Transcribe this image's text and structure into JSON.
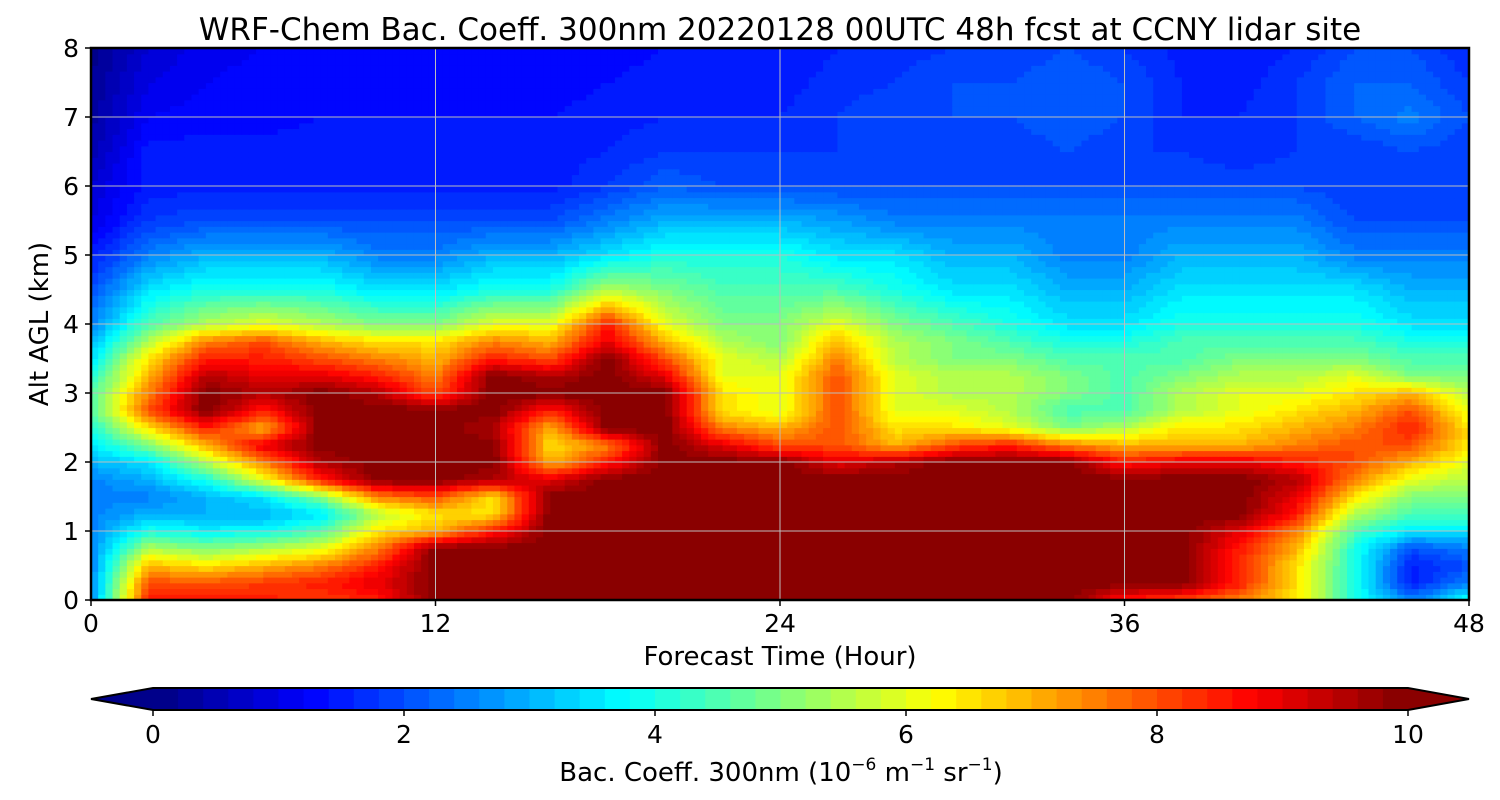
{
  "chart_data": {
    "type": "heatmap",
    "title": "WRF-Chem Bac. Coeff. 300nm  20220128 00UTC 48h fcst at CCNY lidar site",
    "xlabel": "Forecast Time (Hour)",
    "ylabel": "Alt AGL (km)",
    "xlim": [
      0,
      48
    ],
    "ylim": [
      0,
      8
    ],
    "xticks": [
      0,
      12,
      24,
      36,
      48
    ],
    "yticks": [
      0,
      1,
      2,
      3,
      4,
      5,
      6,
      7,
      8
    ],
    "grid": true,
    "colormap": "jet",
    "colorbar": {
      "label_main": "Bac. Coeff. 300nm  (10",
      "label_exp1": "−6",
      "label_mid": " m",
      "label_exp2": "−1",
      "label_mid2": " sr",
      "label_exp3": "−1",
      "label_end": ")",
      "range": [
        0,
        10
      ],
      "ticks": [
        0,
        2,
        4,
        6,
        8,
        10
      ],
      "extend": "both",
      "levels": 50
    },
    "x": [
      0,
      2,
      4,
      6,
      8,
      10,
      12,
      14,
      16,
      18,
      20,
      22,
      24,
      26,
      28,
      30,
      32,
      34,
      36,
      38,
      40,
      42,
      44,
      46,
      48
    ],
    "y": [
      0,
      0.25,
      0.5,
      0.75,
      1,
      1.25,
      1.5,
      1.75,
      2,
      2.25,
      2.5,
      2.75,
      3,
      3.25,
      3.5,
      3.75,
      4,
      4.5,
      5,
      5.5,
      6,
      6.5,
      7,
      7.5,
      8
    ],
    "z": [
      [
        2.5,
        8.5,
        8.5,
        8.5,
        8.2,
        8.5,
        10,
        10,
        10,
        10,
        10,
        10,
        10,
        10,
        10,
        10,
        10,
        10,
        8.5,
        8.0,
        7.5,
        6.5,
        4.0,
        2.5,
        4.0
      ],
      [
        2.5,
        8.0,
        8.0,
        8.2,
        8.5,
        9.0,
        10,
        10,
        10,
        10,
        10,
        10,
        10,
        10,
        10,
        10,
        10,
        10,
        10,
        10,
        8.5,
        6.5,
        4.0,
        1.5,
        2.5
      ],
      [
        2.5,
        7.0,
        6.5,
        7.0,
        7.5,
        8.5,
        10,
        10,
        10,
        10,
        10,
        10,
        10,
        10,
        10,
        10,
        10,
        10,
        10,
        10,
        8.5,
        6.5,
        4.0,
        1.5,
        2.0
      ],
      [
        2.5,
        5.5,
        5.0,
        5.5,
        6.0,
        7.5,
        10,
        10,
        10,
        10,
        10,
        10,
        10,
        10,
        10,
        10,
        10,
        10,
        10,
        10,
        8.5,
        7.0,
        4.0,
        2.0,
        2.5
      ],
      [
        2.5,
        4.0,
        3.7,
        3.8,
        4.5,
        6.5,
        7.0,
        8.5,
        10,
        10,
        10,
        10,
        10,
        10,
        10,
        10,
        10,
        10,
        10,
        10,
        9.0,
        7.5,
        4.5,
        3.5,
        3.5
      ],
      [
        2.5,
        3.0,
        3.0,
        3.0,
        3.5,
        5.5,
        6.5,
        6.5,
        10,
        10,
        10,
        10,
        10,
        10,
        10,
        10,
        10,
        10,
        10,
        10,
        10,
        8.5,
        5.5,
        4.5,
        4.5
      ],
      [
        2.5,
        2.5,
        3.0,
        3.5,
        5.0,
        7.5,
        8.0,
        6.5,
        10,
        10,
        10,
        10,
        10,
        10,
        10,
        10,
        10,
        10,
        10,
        10,
        10,
        9.0,
        6.5,
        5.0,
        5.0
      ],
      [
        2.5,
        3.0,
        4.0,
        6.0,
        8.5,
        10,
        10,
        9.5,
        9.0,
        10,
        10,
        10,
        10,
        10,
        10,
        10,
        10,
        10,
        10,
        10,
        10,
        9.5,
        7.5,
        6.0,
        5.5
      ],
      [
        3.0,
        3.5,
        5.5,
        7.5,
        9.5,
        10,
        10,
        10,
        7.0,
        8.5,
        10,
        10,
        10,
        9.0,
        9.5,
        10,
        10,
        10,
        8.5,
        9.0,
        9.0,
        8.5,
        8.0,
        7.0,
        6.0
      ],
      [
        3.5,
        5.0,
        7.0,
        9.0,
        10,
        10,
        10,
        10,
        6.5,
        7.5,
        10,
        9.0,
        8.0,
        8.0,
        7.0,
        8.0,
        8.5,
        7.5,
        7.0,
        7.0,
        7.0,
        7.5,
        8.0,
        8.0,
        6.5
      ],
      [
        4.0,
        6.5,
        8.5,
        7.0,
        10,
        10,
        10,
        9.5,
        7.0,
        10,
        10,
        7.5,
        7.0,
        8.0,
        6.5,
        6.5,
        6.0,
        5.0,
        5.5,
        6.5,
        6.5,
        7.0,
        7.5,
        8.5,
        6.5
      ],
      [
        4.5,
        8.0,
        10,
        8.5,
        10,
        10,
        10,
        10,
        8.5,
        10,
        10,
        6.5,
        6.0,
        8.0,
        6.0,
        6.0,
        5.5,
        4.5,
        4.5,
        5.5,
        6.0,
        6.5,
        7.0,
        8.0,
        6.0
      ],
      [
        4.5,
        7.5,
        10,
        9.5,
        10,
        9.5,
        8.0,
        10,
        10,
        10,
        10,
        6.5,
        6.0,
        8.0,
        6.0,
        5.5,
        5.5,
        5.0,
        4.5,
        5.5,
        6.0,
        6.0,
        6.5,
        7.0,
        5.5
      ],
      [
        4.0,
        7.0,
        9.5,
        9.0,
        9.0,
        8.5,
        7.5,
        10,
        9.5,
        10,
        9.0,
        6.0,
        6.0,
        8.0,
        6.0,
        5.5,
        5.5,
        5.0,
        4.5,
        5.0,
        5.5,
        5.5,
        6.0,
        5.0,
        5.0
      ],
      [
        3.5,
        6.5,
        8.5,
        8.5,
        8.0,
        7.5,
        7.0,
        8.5,
        8.0,
        10,
        8.0,
        6.0,
        5.5,
        7.5,
        5.5,
        5.0,
        5.0,
        4.5,
        4.5,
        4.5,
        5.0,
        5.0,
        5.0,
        4.5,
        4.5
      ],
      [
        3.0,
        5.5,
        7.5,
        8.0,
        7.0,
        6.5,
        6.5,
        7.5,
        7.0,
        9.0,
        7.0,
        5.5,
        5.0,
        7.0,
        5.5,
        5.0,
        4.5,
        4.0,
        4.0,
        4.5,
        4.5,
        4.5,
        4.5,
        4.0,
        4.0
      ],
      [
        2.5,
        4.5,
        5.5,
        6.0,
        5.5,
        5.0,
        5.0,
        6.0,
        6.0,
        8.5,
        6.0,
        5.0,
        5.0,
        6.0,
        5.0,
        4.5,
        4.0,
        3.5,
        3.5,
        4.0,
        4.0,
        4.0,
        4.0,
        3.5,
        3.5
      ],
      [
        2.0,
        3.5,
        4.0,
        4.0,
        4.0,
        3.5,
        3.5,
        4.0,
        4.0,
        5.5,
        5.0,
        4.5,
        4.5,
        4.5,
        4.0,
        3.5,
        3.5,
        3.0,
        3.0,
        3.5,
        3.5,
        3.5,
        3.5,
        3.0,
        3.0
      ],
      [
        1.5,
        2.5,
        3.0,
        3.0,
        3.0,
        2.5,
        2.5,
        3.0,
        3.0,
        3.5,
        4.0,
        4.0,
        4.0,
        3.5,
        3.5,
        3.0,
        3.0,
        2.5,
        2.5,
        3.0,
        3.0,
        3.0,
        2.5,
        2.5,
        2.5
      ],
      [
        1.0,
        1.8,
        2.0,
        2.0,
        2.0,
        2.0,
        2.0,
        2.0,
        2.0,
        2.5,
        3.0,
        3.0,
        3.0,
        2.8,
        2.5,
        2.5,
        2.5,
        2.5,
        2.5,
        2.5,
        2.5,
        2.5,
        2.0,
        2.0,
        2.0
      ],
      [
        0.8,
        1.5,
        1.5,
        1.5,
        1.5,
        1.5,
        1.5,
        1.5,
        1.5,
        1.8,
        2.2,
        2.0,
        2.0,
        2.0,
        2.0,
        2.0,
        2.0,
        2.0,
        2.0,
        2.0,
        2.0,
        2.0,
        1.8,
        1.8,
        1.8
      ],
      [
        0.5,
        1.5,
        1.5,
        1.5,
        1.5,
        1.5,
        1.5,
        1.5,
        1.5,
        1.6,
        1.8,
        1.8,
        1.8,
        1.8,
        1.8,
        1.8,
        1.8,
        2.0,
        1.8,
        1.8,
        1.6,
        1.8,
        1.8,
        2.0,
        1.8
      ],
      [
        0.3,
        1.2,
        1.3,
        1.3,
        1.4,
        1.4,
        1.4,
        1.4,
        1.4,
        1.5,
        1.6,
        1.6,
        1.6,
        1.8,
        2.0,
        2.0,
        2.0,
        2.2,
        2.0,
        1.6,
        1.6,
        1.8,
        2.2,
        2.5,
        2.0
      ],
      [
        0.2,
        1.0,
        1.2,
        1.3,
        1.3,
        1.3,
        1.3,
        1.3,
        1.3,
        1.4,
        1.5,
        1.5,
        1.5,
        1.7,
        1.8,
        2.0,
        2.0,
        2.2,
        2.0,
        1.6,
        1.5,
        1.8,
        2.2,
        2.2,
        1.8
      ],
      [
        0.1,
        0.8,
        1.1,
        1.2,
        1.2,
        1.2,
        1.2,
        1.2,
        1.2,
        1.3,
        1.4,
        1.4,
        1.4,
        1.6,
        1.7,
        1.8,
        1.8,
        2.0,
        1.8,
        1.5,
        1.4,
        1.6,
        2.0,
        2.0,
        1.6
      ]
    ]
  }
}
